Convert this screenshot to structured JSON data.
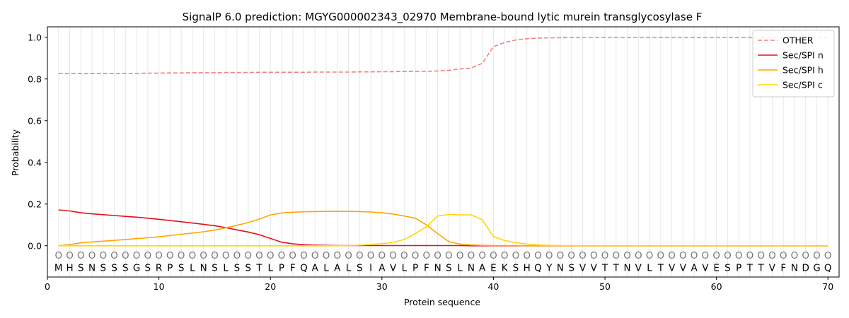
{
  "chart_data": {
    "type": "line",
    "title": "SignalP 6.0 prediction: MGYG000002343_02970 Membrane-bound lytic murein transglycosylase F",
    "xlabel": "Protein sequence",
    "ylabel": "Probability",
    "xlim": [
      0,
      71
    ],
    "ylim": [
      -0.15,
      1.05
    ],
    "xticks": [
      0,
      10,
      20,
      30,
      40,
      50,
      60,
      70
    ],
    "yticks": [
      0.0,
      0.2,
      0.4,
      0.6,
      0.8,
      1.0
    ],
    "ytick_labels": [
      "0.0",
      "0.2",
      "0.4",
      "0.6",
      "0.8",
      "1.0"
    ],
    "grid": "vertical",
    "legend_position": "top-right",
    "sequence": [
      "M",
      "H",
      "S",
      "N",
      "S",
      "S",
      "S",
      "G",
      "S",
      "R",
      "P",
      "S",
      "L",
      "N",
      "S",
      "L",
      "S",
      "S",
      "T",
      "L",
      "P",
      "F",
      "Q",
      "A",
      "L",
      "A",
      "L",
      "S",
      "I",
      "A",
      "V",
      "L",
      "P",
      "F",
      "N",
      "S",
      "L",
      "N",
      "A",
      "E",
      "K",
      "S",
      "H",
      "Q",
      "Y",
      "N",
      "S",
      "V",
      "V",
      "T",
      "T",
      "N",
      "V",
      "L",
      "T",
      "V",
      "V",
      "A",
      "V",
      "E",
      "S",
      "P",
      "T",
      "T",
      "V",
      "F",
      "N",
      "D",
      "G",
      "Q"
    ],
    "marker_glyph": "O",
    "series": [
      {
        "name": "OTHER",
        "color": "#f08080",
        "dashed": true,
        "values": [
          0.826,
          0.826,
          0.826,
          0.826,
          0.826,
          0.827,
          0.827,
          0.827,
          0.828,
          0.828,
          0.829,
          0.829,
          0.83,
          0.83,
          0.83,
          0.831,
          0.831,
          0.831,
          0.832,
          0.832,
          0.832,
          0.832,
          0.832,
          0.833,
          0.833,
          0.833,
          0.833,
          0.834,
          0.834,
          0.835,
          0.835,
          0.836,
          0.836,
          0.837,
          0.838,
          0.842,
          0.848,
          0.852,
          0.875,
          0.955,
          0.975,
          0.987,
          0.993,
          0.996,
          0.997,
          0.998,
          0.999,
          0.999,
          0.999,
          0.999,
          0.999,
          0.999,
          0.999,
          0.999,
          0.999,
          0.999,
          0.999,
          0.999,
          0.999,
          0.999,
          0.999,
          0.999,
          0.999,
          0.999,
          0.999,
          0.999,
          0.999,
          0.999,
          0.999,
          0.999
        ]
      },
      {
        "name": "Sec/SPI n",
        "color": "#e3101c",
        "dashed": false,
        "values": [
          0.172,
          0.167,
          0.158,
          0.153,
          0.149,
          0.145,
          0.141,
          0.137,
          0.132,
          0.127,
          0.121,
          0.115,
          0.109,
          0.103,
          0.096,
          0.087,
          0.076,
          0.066,
          0.053,
          0.035,
          0.017,
          0.009,
          0.005,
          0.003,
          0.002,
          0.001,
          0.001,
          0.001,
          0.001,
          0.001,
          0.001,
          0.001,
          0.001,
          0.001,
          0.001,
          0.001,
          0.001,
          0.0,
          0.0,
          0.0,
          0.0,
          0.0,
          0.0,
          0.0,
          0.0,
          0.0,
          0.0,
          0.0,
          0.0,
          0.0,
          0.0,
          0.0,
          0.0,
          0.0,
          0.0,
          0.0,
          0.0,
          0.0,
          0.0,
          0.0,
          0.0,
          0.0,
          0.0,
          0.0,
          0.0,
          0.0,
          0.0,
          0.0,
          0.0,
          0.0
        ]
      },
      {
        "name": "Sec/SPI h",
        "color": "#ffa500",
        "dashed": false,
        "values": [
          0.001,
          0.005,
          0.014,
          0.018,
          0.022,
          0.026,
          0.03,
          0.034,
          0.038,
          0.043,
          0.049,
          0.055,
          0.061,
          0.067,
          0.075,
          0.086,
          0.098,
          0.111,
          0.128,
          0.148,
          0.157,
          0.161,
          0.163,
          0.164,
          0.165,
          0.165,
          0.165,
          0.164,
          0.162,
          0.158,
          0.152,
          0.143,
          0.132,
          0.1,
          0.058,
          0.02,
          0.008,
          0.004,
          0.002,
          0.001,
          0.001,
          0.001,
          0.0,
          0.0,
          0.0,
          0.0,
          0.0,
          0.0,
          0.0,
          0.0,
          0.0,
          0.0,
          0.0,
          0.0,
          0.0,
          0.0,
          0.0,
          0.0,
          0.0,
          0.0,
          0.0,
          0.0,
          0.0,
          0.0,
          0.0,
          0.0,
          0.0,
          0.0,
          0.0,
          0.0
        ]
      },
      {
        "name": "Sec/SPI c",
        "color": "#ffd700",
        "dashed": false,
        "values": [
          0.0,
          0.0,
          0.0,
          0.0,
          0.0,
          0.0,
          0.0,
          0.0,
          0.0,
          0.0,
          0.0,
          0.0,
          0.0,
          0.0,
          0.0,
          0.0,
          0.0,
          0.0,
          0.0,
          0.0,
          0.0,
          0.0,
          0.0,
          0.0,
          0.0,
          0.0,
          0.001,
          0.003,
          0.006,
          0.01,
          0.016,
          0.03,
          0.058,
          0.092,
          0.143,
          0.15,
          0.148,
          0.148,
          0.125,
          0.044,
          0.025,
          0.015,
          0.008,
          0.004,
          0.002,
          0.001,
          0.001,
          0.0,
          0.0,
          0.0,
          0.0,
          0.0,
          0.0,
          0.0,
          0.0,
          0.0,
          0.0,
          0.0,
          0.0,
          0.0,
          0.0,
          0.0,
          0.0,
          0.0,
          0.0,
          0.0,
          0.0,
          0.0,
          0.0,
          0.0
        ]
      }
    ]
  }
}
